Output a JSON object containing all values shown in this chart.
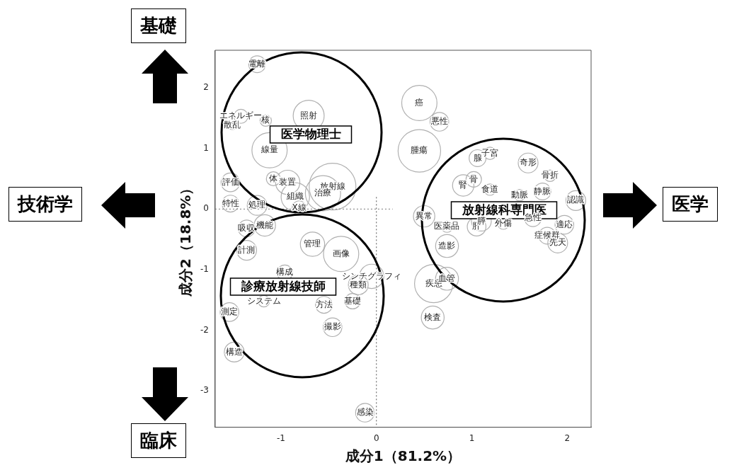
{
  "chart_data": {
    "type": "bubble",
    "xlabel": "成分1（81.2%）",
    "ylabel": "成分2（18.8%）",
    "xlim": [
      -1.69,
      2.25
    ],
    "ylim": [
      -3.6,
      2.62
    ],
    "xticks": [
      -1,
      0,
      1,
      2
    ],
    "yticks": [
      -3,
      -2,
      -1,
      0,
      1,
      2
    ],
    "grid": false,
    "legend": false,
    "series": [
      {
        "color": "#b0b0b0",
        "x": [
          -1.25,
          -1.42,
          -1.51,
          -1.16,
          -0.71,
          -1.12,
          -1.08,
          -0.93,
          -0.85,
          -1.53,
          -0.46,
          -0.56,
          -0.81,
          -1.53,
          -1.25,
          -1.36,
          -1.17,
          -1.36,
          -0.67,
          -0.37,
          -0.96,
          -0.05,
          -0.19,
          -0.25,
          -0.55,
          -0.46,
          -1.18,
          -1.54,
          -1.49,
          -0.12,
          0.45,
          0.66,
          0.45,
          1.19,
          1.06,
          1.59,
          1.82,
          1.74,
          1.02,
          0.91,
          1.19,
          1.5,
          2.09,
          0.5,
          0.74,
          1.05,
          1.1,
          1.33,
          1.64,
          1.97,
          1.79,
          1.9,
          0.74,
          0.6,
          0.74,
          0.59
        ],
        "values": [
          2.39,
          1.53,
          1.38,
          1.46,
          1.54,
          0.97,
          0.5,
          0.44,
          0.2,
          0.44,
          0.37,
          0.26,
          0.02,
          0.09,
          0.06,
          -0.32,
          -0.27,
          -0.68,
          -0.58,
          -0.74,
          -1.05,
          -1.11,
          -1.25,
          -1.52,
          -1.58,
          -1.95,
          -1.52,
          -1.7,
          -2.36,
          -3.36,
          1.75,
          1.44,
          0.96,
          0.92,
          0.84,
          0.76,
          0.55,
          0.29,
          0.49,
          0.39,
          0.32,
          0.23,
          0.14,
          -0.12,
          -0.29,
          -0.29,
          -0.2,
          -0.24,
          -0.15,
          -0.26,
          -0.44,
          -0.56,
          -0.61,
          -1.23,
          -1.15,
          -1.79
        ],
        "sizes": [
          0.13,
          0.09,
          0.03,
          0.06,
          0.44,
          0.57,
          0.09,
          0.27,
          0.37,
          0.16,
          1,
          0.57,
          0.09,
          0.13,
          0.18,
          0.13,
          0.21,
          0.18,
          0.27,
          0.57,
          0.11,
          0.27,
          0.18,
          0.11,
          0.13,
          0.16,
          0.06,
          0.16,
          0.18,
          0.16,
          0.57,
          0.16,
          0.83,
          0.07,
          0.13,
          0.18,
          0.06,
          0.13,
          0.11,
          0.21,
          0.06,
          0.06,
          0.18,
          0.21,
          0.06,
          0.16,
          0.18,
          0.06,
          0.13,
          0.16,
          0.13,
          0.18,
          0.24,
          0.67,
          0.24,
          0.24
        ],
        "value_labels": [
          "電離",
          "エネルギー",
          "散乱",
          "核",
          "照射",
          "線量",
          "体",
          "装置",
          "組織",
          "評価",
          "放射線",
          "治療",
          "X線",
          "特性",
          "処理",
          "吸収",
          "機能",
          "計測",
          "管理",
          "画像",
          "構成",
          "シンチグラフィ",
          "種類",
          "基礎",
          "方法",
          "撮影",
          "システム",
          "測定",
          "構造",
          "感染",
          "癌",
          "悪性",
          "腫瘍",
          "子宮",
          "腺",
          "奇形",
          "骨折",
          "静脈",
          "骨",
          "腎",
          "食道",
          "動脈",
          "認識",
          "異常",
          "医薬品",
          "肝",
          "膵",
          "外傷",
          "急性",
          "適応",
          "症候群",
          "先天",
          "造影",
          "疾患",
          "血管",
          "検査"
        ]
      }
    ],
    "ref_lines": [
      {
        "axis": "x",
        "value": 0,
        "line_style": "dotted",
        "color": "#555555"
      },
      {
        "axis": "y",
        "value": 0,
        "line_style": "dotted",
        "color": "#777777"
      }
    ],
    "annotations": [
      "医学物理士",
      "放射線科専門医",
      "診療放射線技師",
      "基礎",
      "技術学",
      "医学",
      "臨床"
    ]
  }
}
